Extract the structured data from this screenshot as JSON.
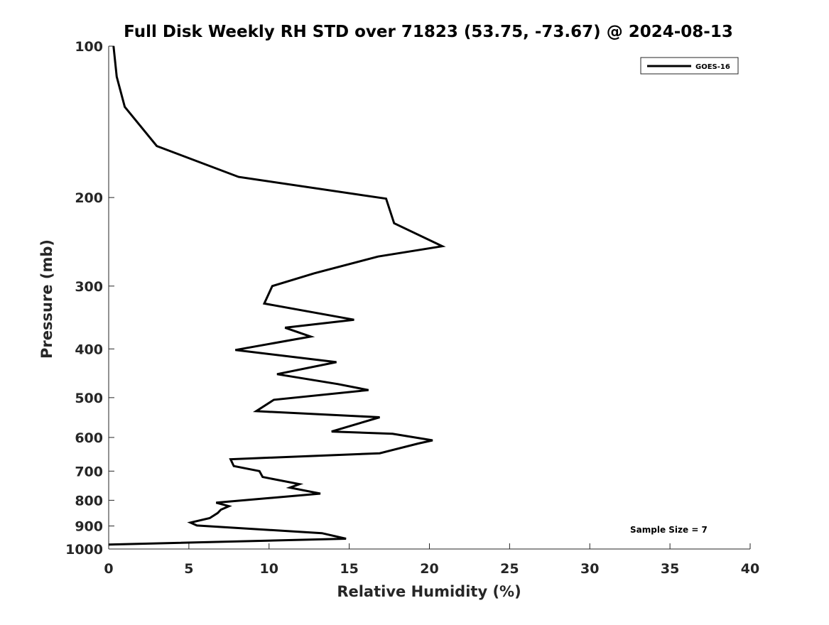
{
  "chart_data": {
    "type": "line",
    "title": "Full Disk Weekly RH STD over 71823 (53.75, -73.67) @ 2024-08-13",
    "xlabel": "Relative Humidity (%)",
    "ylabel": "Pressure (mb)",
    "xlim": [
      0,
      40
    ],
    "ylim": [
      1000,
      100
    ],
    "yscale": "log",
    "y_reversed": true,
    "x_ticks": [
      0,
      5,
      10,
      15,
      20,
      25,
      30,
      35,
      40
    ],
    "y_ticks": [
      100,
      200,
      300,
      400,
      500,
      600,
      700,
      800,
      900,
      1000
    ],
    "grid": false,
    "legend_position": "top-right",
    "annotation": "Sample Size = 7",
    "series": [
      {
        "name": "GOES-16",
        "color": "#000000",
        "points": [
          [
            0.3,
            100
          ],
          [
            0.5,
            115
          ],
          [
            1.0,
            132
          ],
          [
            3.0,
            158
          ],
          [
            8.1,
            182
          ],
          [
            17.3,
            201
          ],
          [
            17.8,
            225
          ],
          [
            20.8,
            250
          ],
          [
            16.8,
            262
          ],
          [
            12.8,
            283
          ],
          [
            10.2,
            300
          ],
          [
            9.7,
            325
          ],
          [
            15.3,
            350
          ],
          [
            11.0,
            363
          ],
          [
            12.6,
            378
          ],
          [
            7.9,
            402
          ],
          [
            14.2,
            425
          ],
          [
            10.5,
            449
          ],
          [
            14.3,
            470
          ],
          [
            16.2,
            483
          ],
          [
            10.3,
            505
          ],
          [
            9.2,
            532
          ],
          [
            16.9,
            547
          ],
          [
            13.9,
            584
          ],
          [
            17.7,
            590
          ],
          [
            20.2,
            608
          ],
          [
            19.3,
            617
          ],
          [
            16.9,
            645
          ],
          [
            7.6,
            663
          ],
          [
            7.8,
            684
          ],
          [
            9.4,
            700
          ],
          [
            9.6,
            719
          ],
          [
            11.9,
            743
          ],
          [
            11.3,
            755
          ],
          [
            13.2,
            776
          ],
          [
            6.7,
            809
          ],
          [
            7.5,
            822
          ],
          [
            7.0,
            835
          ],
          [
            6.8,
            848
          ],
          [
            6.3,
            868
          ],
          [
            5.1,
            886
          ],
          [
            5.5,
            898
          ],
          [
            13.3,
            930
          ],
          [
            14.8,
            954
          ],
          [
            0.0,
            980
          ]
        ]
      }
    ]
  }
}
